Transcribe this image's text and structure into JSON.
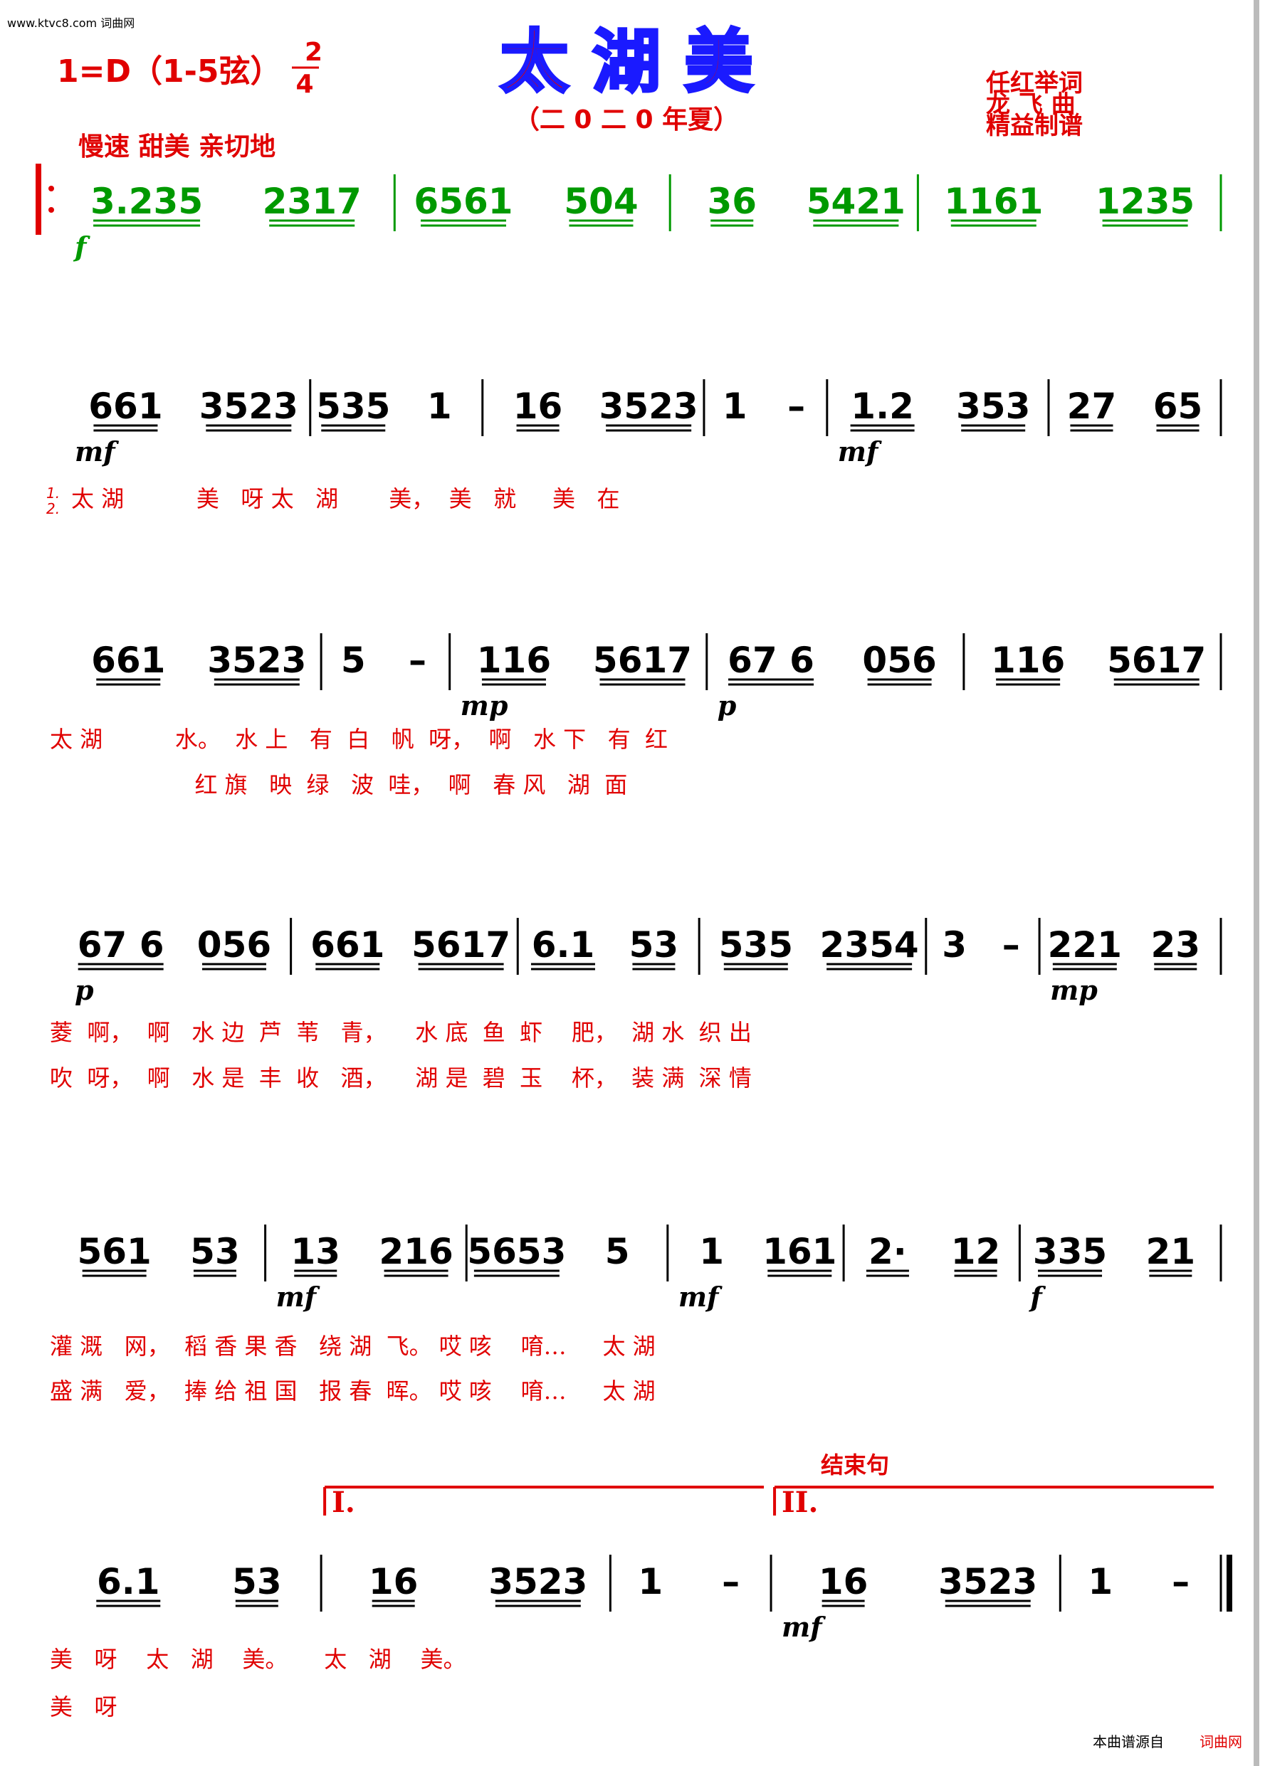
{
  "watermark": "www.ktvc8.com 词曲网",
  "header": {
    "key": "1=D（1-5弦）",
    "time": {
      "top": "2",
      "bottom": "4"
    },
    "title": "太 湖 美",
    "subtitle": "（二 0 二 0 年夏）",
    "credits": [
      "任红举词",
      "龙 飞 曲",
      "精益制谱"
    ]
  },
  "tempo": "慢速  甜美  亲切地",
  "systems": [
    {
      "measures": [
        {
          "notes": [
            "3.235",
            "2317"
          ],
          "dyn": "f"
        },
        {
          "notes": [
            "6561",
            "504"
          ]
        },
        {
          "notes": [
            "36",
            "5421"
          ]
        },
        {
          "notes": [
            "1161",
            "1235"
          ]
        }
      ],
      "lyrics": []
    },
    {
      "measures": [
        {
          "notes": [
            "661",
            "3523"
          ],
          "dyn": "mf"
        },
        {
          "notes": [
            "535",
            "1"
          ]
        },
        {
          "notes": [
            "16",
            "3523"
          ]
        },
        {
          "notes": [
            "1",
            "–"
          ]
        },
        {
          "notes": [
            "1.2",
            "353"
          ],
          "dyn": "mf"
        },
        {
          "notes": [
            "27",
            "65"
          ]
        }
      ],
      "verse_marks": [
        "1.",
        "2."
      ],
      "lyrics": [
        "太 湖          美   呀 太   湖       美，  美   就     美   在"
      ]
    },
    {
      "measures": [
        {
          "notes": [
            "661",
            "3523"
          ]
        },
        {
          "notes": [
            "5",
            "–"
          ]
        },
        {
          "notes": [
            "116",
            "5617"
          ],
          "dyn": "mp"
        },
        {
          "notes": [
            "67 6",
            "056"
          ],
          "dyn": "p"
        },
        {
          "notes": [
            "116",
            "5617"
          ]
        }
      ],
      "lyrics": [
        "太 湖          水。  水 上   有  白   帆  呀，  啊   水 下   有  红",
        "                    红 旗   映  绿   波  哇，  啊   春 风   湖  面"
      ]
    },
    {
      "measures": [
        {
          "notes": [
            "67 6",
            "056"
          ],
          "dyn": "p"
        },
        {
          "notes": [
            "661",
            "5617"
          ]
        },
        {
          "notes": [
            "6.1",
            "53"
          ]
        },
        {
          "notes": [
            "535",
            "2354"
          ]
        },
        {
          "notes": [
            "3",
            "–"
          ]
        },
        {
          "notes": [
            "221",
            "23"
          ],
          "dyn": "mp"
        }
      ],
      "lyrics": [
        "菱  啊，  啊   水 边  芦  苇   青，    水 底  鱼  虾    肥，  湖 水  织 出",
        "吹  呀，  啊   水 是  丰  收   酒，    湖 是  碧  玉    杯，  装 满  深 情"
      ]
    },
    {
      "measures": [
        {
          "notes": [
            "561",
            "53"
          ]
        },
        {
          "notes": [
            "13",
            "216"
          ],
          "dyn": "mf"
        },
        {
          "notes": [
            "5653",
            "5"
          ]
        },
        {
          "notes": [
            "1",
            "161"
          ],
          "dyn": "mf"
        },
        {
          "notes": [
            "2·",
            "12"
          ]
        },
        {
          "notes": [
            "335",
            "21"
          ],
          "dyn": "f"
        }
      ],
      "lyrics": [
        "灌 溉   网，  稻 香 果 香   绕 湖  飞。 哎 咳    唷…     太 湖",
        "盛 满   爱，  捧 给 祖 国   报 春  晖。 哎 咳    唷…     太 湖"
      ]
    },
    {
      "measures": [
        {
          "notes": [
            "6.1",
            "53"
          ]
        },
        {
          "notes": [
            "16",
            "3523"
          ],
          "volta": "I."
        },
        {
          "notes": [
            "1",
            "–"
          ]
        },
        {
          "notes": [
            "16",
            "3523"
          ],
          "volta": "II.",
          "volta_note": "结束句",
          "dyn": "mf"
        },
        {
          "notes": [
            "1",
            "–"
          ]
        }
      ],
      "lyrics": [
        "美   呀    太   湖    美。     太   湖    美。",
        "美   呀"
      ]
    }
  ],
  "footer": {
    "source": "本曲谱源自",
    "site": "词曲网"
  }
}
